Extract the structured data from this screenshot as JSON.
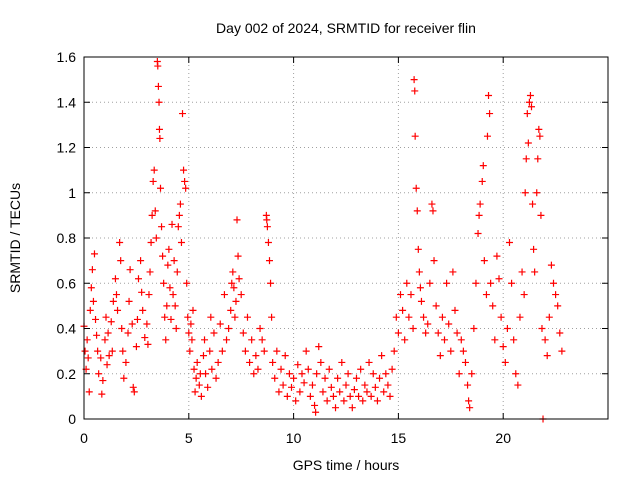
{
  "chart_data": {
    "type": "scatter",
    "title": "Day 002 of 2024, SRMTID for receiver flin",
    "xlabel": "GPS time / hours",
    "ylabel": "SRMTID / TECUs",
    "xlim": [
      0,
      25
    ],
    "ylim": [
      0,
      1.6
    ],
    "x_ticks": [
      0,
      5,
      10,
      15,
      20
    ],
    "x_tick_labels": [
      "0",
      "5",
      "10",
      "15",
      "20"
    ],
    "y_ticks": [
      0,
      0.2,
      0.4,
      0.6,
      0.8,
      1,
      1.2,
      1.4,
      1.6
    ],
    "y_tick_labels": [
      "0",
      "0.2",
      "0.4",
      "0.6",
      "0.8",
      "1",
      "1.2",
      "1.4",
      "1.6"
    ],
    "grid": true,
    "marker": "plus",
    "color": "#ff0000",
    "series": [
      {
        "name": "SRMTID",
        "points": [
          [
            0.0,
            0.41
          ],
          [
            0.05,
            0.3
          ],
          [
            0.1,
            0.22
          ],
          [
            0.15,
            0.35
          ],
          [
            0.2,
            0.27
          ],
          [
            0.25,
            0.12
          ],
          [
            0.3,
            0.48
          ],
          [
            0.35,
            0.58
          ],
          [
            0.4,
            0.66
          ],
          [
            0.45,
            0.52
          ],
          [
            0.5,
            0.73
          ],
          [
            0.55,
            0.44
          ],
          [
            0.6,
            0.37
          ],
          [
            0.65,
            0.3
          ],
          [
            0.7,
            0.2
          ],
          [
            0.8,
            0.27
          ],
          [
            0.85,
            0.11
          ],
          [
            0.9,
            0.17
          ],
          [
            1.0,
            0.35
          ],
          [
            1.05,
            0.45
          ],
          [
            1.1,
            0.24
          ],
          [
            1.15,
            0.38
          ],
          [
            1.2,
            0.28
          ],
          [
            1.3,
            0.43
          ],
          [
            1.35,
            0.3
          ],
          [
            1.4,
            0.52
          ],
          [
            1.5,
            0.62
          ],
          [
            1.55,
            0.55
          ],
          [
            1.6,
            0.48
          ],
          [
            1.7,
            0.78
          ],
          [
            1.75,
            0.7
          ],
          [
            1.8,
            0.4
          ],
          [
            1.85,
            0.3
          ],
          [
            1.9,
            0.18
          ],
          [
            2.0,
            0.25
          ],
          [
            2.1,
            0.38
          ],
          [
            2.15,
            0.52
          ],
          [
            2.2,
            0.66
          ],
          [
            2.3,
            0.42
          ],
          [
            2.35,
            0.14
          ],
          [
            2.4,
            0.12
          ],
          [
            2.5,
            0.32
          ],
          [
            2.55,
            0.44
          ],
          [
            2.6,
            0.62
          ],
          [
            2.7,
            0.7
          ],
          [
            2.75,
            0.56
          ],
          [
            2.8,
            0.48
          ],
          [
            2.9,
            0.36
          ],
          [
            3.0,
            0.42
          ],
          [
            3.05,
            0.33
          ],
          [
            3.1,
            0.55
          ],
          [
            3.15,
            0.65
          ],
          [
            3.2,
            0.78
          ],
          [
            3.25,
            0.9
          ],
          [
            3.3,
            1.05
          ],
          [
            3.35,
            1.1
          ],
          [
            3.4,
            0.92
          ],
          [
            3.45,
            0.8
          ],
          [
            3.5,
            1.58
          ],
          [
            3.52,
            1.56
          ],
          [
            3.55,
            1.47
          ],
          [
            3.58,
            1.4
          ],
          [
            3.6,
            1.28
          ],
          [
            3.62,
            1.24
          ],
          [
            3.65,
            1.02
          ],
          [
            3.7,
            0.85
          ],
          [
            3.75,
            0.72
          ],
          [
            3.8,
            0.6
          ],
          [
            3.85,
            0.45
          ],
          [
            3.9,
            0.35
          ],
          [
            3.95,
            0.5
          ],
          [
            4.0,
            0.68
          ],
          [
            4.05,
            0.75
          ],
          [
            4.1,
            0.58
          ],
          [
            4.15,
            0.44
          ],
          [
            4.2,
            0.86
          ],
          [
            4.25,
            0.55
          ],
          [
            4.3,
            0.7
          ],
          [
            4.35,
            0.5
          ],
          [
            4.4,
            0.4
          ],
          [
            4.45,
            0.65
          ],
          [
            4.5,
            0.85
          ],
          [
            4.55,
            0.9
          ],
          [
            4.6,
            0.95
          ],
          [
            4.65,
            0.78
          ],
          [
            4.7,
            1.35
          ],
          [
            4.75,
            1.1
          ],
          [
            4.8,
            1.05
          ],
          [
            4.85,
            1.02
          ],
          [
            4.9,
            0.6
          ],
          [
            4.95,
            0.45
          ],
          [
            5.0,
            0.38
          ],
          [
            5.05,
            0.3
          ],
          [
            5.1,
            0.42
          ],
          [
            5.15,
            0.35
          ],
          [
            5.2,
            0.48
          ],
          [
            5.25,
            0.22
          ],
          [
            5.3,
            0.12
          ],
          [
            5.35,
            0.18
          ],
          [
            5.4,
            0.25
          ],
          [
            5.5,
            0.15
          ],
          [
            5.55,
            0.2
          ],
          [
            5.6,
            0.1
          ],
          [
            5.7,
            0.28
          ],
          [
            5.75,
            0.35
          ],
          [
            5.8,
            0.2
          ],
          [
            5.9,
            0.14
          ],
          [
            6.0,
            0.3
          ],
          [
            6.05,
            0.45
          ],
          [
            6.1,
            0.22
          ],
          [
            6.2,
            0.38
          ],
          [
            6.3,
            0.18
          ],
          [
            6.4,
            0.25
          ],
          [
            6.5,
            0.42
          ],
          [
            6.6,
            0.3
          ],
          [
            6.7,
            0.55
          ],
          [
            6.8,
            0.35
          ],
          [
            6.9,
            0.4
          ],
          [
            7.0,
            0.48
          ],
          [
            7.05,
            0.6
          ],
          [
            7.1,
            0.65
          ],
          [
            7.15,
            0.58
          ],
          [
            7.2,
            0.45
          ],
          [
            7.25,
            0.52
          ],
          [
            7.3,
            0.88
          ],
          [
            7.35,
            0.72
          ],
          [
            7.4,
            0.62
          ],
          [
            7.5,
            0.55
          ],
          [
            7.6,
            0.38
          ],
          [
            7.7,
            0.3
          ],
          [
            7.8,
            0.45
          ],
          [
            7.9,
            0.25
          ],
          [
            8.0,
            0.35
          ],
          [
            8.1,
            0.2
          ],
          [
            8.2,
            0.28
          ],
          [
            8.3,
            0.22
          ],
          [
            8.4,
            0.4
          ],
          [
            8.5,
            0.35
          ],
          [
            8.6,
            0.3
          ],
          [
            8.7,
            0.9
          ],
          [
            8.72,
            0.88
          ],
          [
            8.75,
            0.85
          ],
          [
            8.8,
            0.78
          ],
          [
            8.85,
            0.7
          ],
          [
            8.9,
            0.6
          ],
          [
            8.95,
            0.45
          ],
          [
            9.0,
            0.25
          ],
          [
            9.1,
            0.18
          ],
          [
            9.2,
            0.3
          ],
          [
            9.3,
            0.12
          ],
          [
            9.4,
            0.22
          ],
          [
            9.5,
            0.15
          ],
          [
            9.6,
            0.28
          ],
          [
            9.7,
            0.1
          ],
          [
            9.8,
            0.2
          ],
          [
            9.9,
            0.14
          ],
          [
            10.0,
            0.18
          ],
          [
            10.1,
            0.08
          ],
          [
            10.2,
            0.24
          ],
          [
            10.3,
            0.12
          ],
          [
            10.4,
            0.2
          ],
          [
            10.5,
            0.16
          ],
          [
            10.6,
            0.3
          ],
          [
            10.7,
            0.22
          ],
          [
            10.8,
            0.1
          ],
          [
            10.9,
            0.15
          ],
          [
            11.0,
            0.06
          ],
          [
            11.05,
            0.03
          ],
          [
            11.1,
            0.2
          ],
          [
            11.2,
            0.32
          ],
          [
            11.3,
            0.25
          ],
          [
            11.4,
            0.12
          ],
          [
            11.5,
            0.18
          ],
          [
            11.6,
            0.08
          ],
          [
            11.7,
            0.22
          ],
          [
            11.8,
            0.14
          ],
          [
            11.9,
            0.1
          ],
          [
            12.0,
            0.05
          ],
          [
            12.1,
            0.18
          ],
          [
            12.2,
            0.12
          ],
          [
            12.3,
            0.25
          ],
          [
            12.4,
            0.08
          ],
          [
            12.5,
            0.15
          ],
          [
            12.6,
            0.2
          ],
          [
            12.7,
            0.1
          ],
          [
            12.8,
            0.05
          ],
          [
            12.9,
            0.13
          ],
          [
            13.0,
            0.18
          ],
          [
            13.1,
            0.1
          ],
          [
            13.2,
            0.22
          ],
          [
            13.3,
            0.08
          ],
          [
            13.4,
            0.15
          ],
          [
            13.5,
            0.12
          ],
          [
            13.6,
            0.25
          ],
          [
            13.7,
            0.1
          ],
          [
            13.8,
            0.2
          ],
          [
            13.9,
            0.14
          ],
          [
            14.0,
            0.08
          ],
          [
            14.1,
            0.18
          ],
          [
            14.2,
            0.28
          ],
          [
            14.3,
            0.12
          ],
          [
            14.4,
            0.2
          ],
          [
            14.5,
            0.15
          ],
          [
            14.6,
            0.1
          ],
          [
            14.7,
            0.22
          ],
          [
            14.8,
            0.3
          ],
          [
            14.9,
            0.45
          ],
          [
            15.0,
            0.38
          ],
          [
            15.1,
            0.55
          ],
          [
            15.2,
            0.48
          ],
          [
            15.3,
            0.35
          ],
          [
            15.4,
            0.6
          ],
          [
            15.5,
            0.45
          ],
          [
            15.6,
            0.55
          ],
          [
            15.7,
            0.4
          ],
          [
            15.75,
            1.5
          ],
          [
            15.78,
            1.45
          ],
          [
            15.8,
            1.25
          ],
          [
            15.85,
            1.02
          ],
          [
            15.9,
            0.92
          ],
          [
            15.95,
            0.75
          ],
          [
            16.0,
            0.65
          ],
          [
            16.05,
            0.58
          ],
          [
            16.1,
            0.52
          ],
          [
            16.2,
            0.45
          ],
          [
            16.3,
            0.38
          ],
          [
            16.4,
            0.42
          ],
          [
            16.5,
            0.6
          ],
          [
            16.6,
            0.95
          ],
          [
            16.65,
            0.92
          ],
          [
            16.7,
            0.7
          ],
          [
            16.8,
            0.5
          ],
          [
            16.9,
            0.38
          ],
          [
            17.0,
            0.28
          ],
          [
            17.1,
            0.45
          ],
          [
            17.2,
            0.35
          ],
          [
            17.3,
            0.6
          ],
          [
            17.4,
            0.42
          ],
          [
            17.5,
            0.3
          ],
          [
            17.6,
            0.65
          ],
          [
            17.7,
            0.48
          ],
          [
            17.8,
            0.38
          ],
          [
            17.9,
            0.2
          ],
          [
            18.0,
            0.35
          ],
          [
            18.1,
            0.3
          ],
          [
            18.2,
            0.25
          ],
          [
            18.3,
            0.15
          ],
          [
            18.35,
            0.08
          ],
          [
            18.4,
            0.05
          ],
          [
            18.5,
            0.2
          ],
          [
            18.6,
            0.4
          ],
          [
            18.7,
            0.6
          ],
          [
            18.8,
            0.82
          ],
          [
            18.85,
            0.9
          ],
          [
            18.9,
            0.95
          ],
          [
            19.0,
            1.05
          ],
          [
            19.05,
            1.12
          ],
          [
            19.1,
            0.7
          ],
          [
            19.2,
            0.55
          ],
          [
            19.25,
            1.25
          ],
          [
            19.3,
            1.43
          ],
          [
            19.35,
            1.35
          ],
          [
            19.4,
            0.6
          ],
          [
            19.5,
            0.5
          ],
          [
            19.6,
            0.35
          ],
          [
            19.7,
            0.72
          ],
          [
            19.8,
            0.62
          ],
          [
            19.9,
            0.45
          ],
          [
            20.0,
            0.32
          ],
          [
            20.1,
            0.25
          ],
          [
            20.2,
            0.4
          ],
          [
            20.3,
            0.78
          ],
          [
            20.4,
            0.6
          ],
          [
            20.5,
            0.35
          ],
          [
            20.6,
            0.2
          ],
          [
            20.7,
            0.15
          ],
          [
            20.8,
            0.45
          ],
          [
            20.9,
            0.65
          ],
          [
            21.0,
            0.55
          ],
          [
            21.05,
            1.0
          ],
          [
            21.1,
            1.15
          ],
          [
            21.15,
            1.35
          ],
          [
            21.2,
            1.22
          ],
          [
            21.25,
            1.4
          ],
          [
            21.3,
            1.43
          ],
          [
            21.35,
            1.38
          ],
          [
            21.4,
            0.95
          ],
          [
            21.45,
            0.75
          ],
          [
            21.5,
            0.65
          ],
          [
            21.6,
            1.0
          ],
          [
            21.65,
            1.15
          ],
          [
            21.7,
            1.28
          ],
          [
            21.75,
            1.25
          ],
          [
            21.8,
            0.9
          ],
          [
            21.85,
            0.4
          ],
          [
            21.9,
            0.0
          ],
          [
            22.0,
            0.35
          ],
          [
            22.1,
            0.28
          ],
          [
            22.2,
            0.45
          ],
          [
            22.3,
            0.68
          ],
          [
            22.4,
            0.6
          ],
          [
            22.5,
            0.55
          ],
          [
            22.6,
            0.5
          ],
          [
            22.7,
            0.38
          ],
          [
            22.8,
            0.3
          ]
        ]
      }
    ]
  }
}
